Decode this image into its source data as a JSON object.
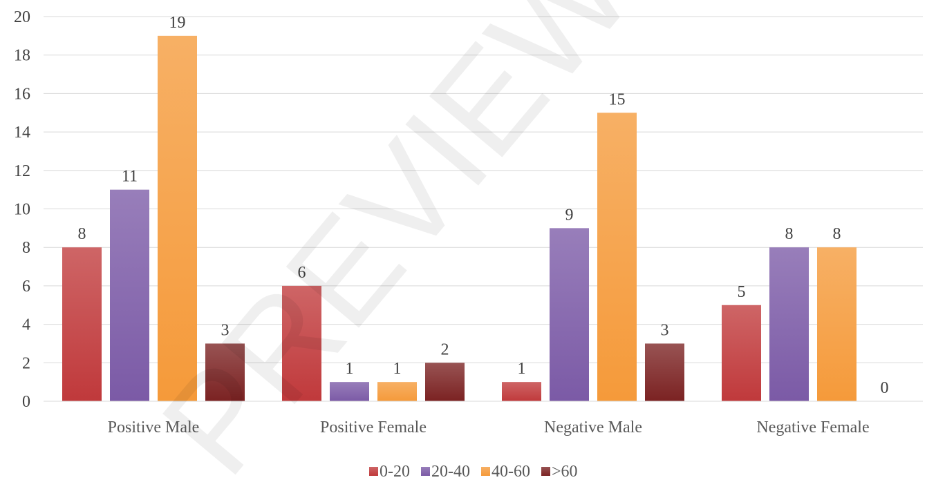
{
  "chart_data": {
    "type": "bar",
    "categories": [
      "Positive Male",
      "Positive Female",
      "Negative Male",
      "Negative Female"
    ],
    "series": [
      {
        "name": "0-20",
        "values": [
          8,
          6,
          1,
          5
        ],
        "color": "#c0393b"
      },
      {
        "name": "20-40",
        "values": [
          11,
          1,
          9,
          8
        ],
        "color": "#7b5aa6"
      },
      {
        "name": "40-60",
        "values": [
          19,
          1,
          15,
          8
        ],
        "color": "#f59a3a"
      },
      {
        "name": ">60",
        "values": [
          3,
          2,
          3,
          0
        ],
        "color": "#7b2222"
      }
    ],
    "ylim": [
      0,
      20
    ],
    "yticks": [
      0,
      2,
      4,
      6,
      8,
      10,
      12,
      14,
      16,
      18,
      20
    ],
    "grid": true,
    "legend_position": "bottom",
    "data_labels": true,
    "title": "",
    "xlabel": "",
    "ylabel": ""
  },
  "watermark": "PREVIEW"
}
